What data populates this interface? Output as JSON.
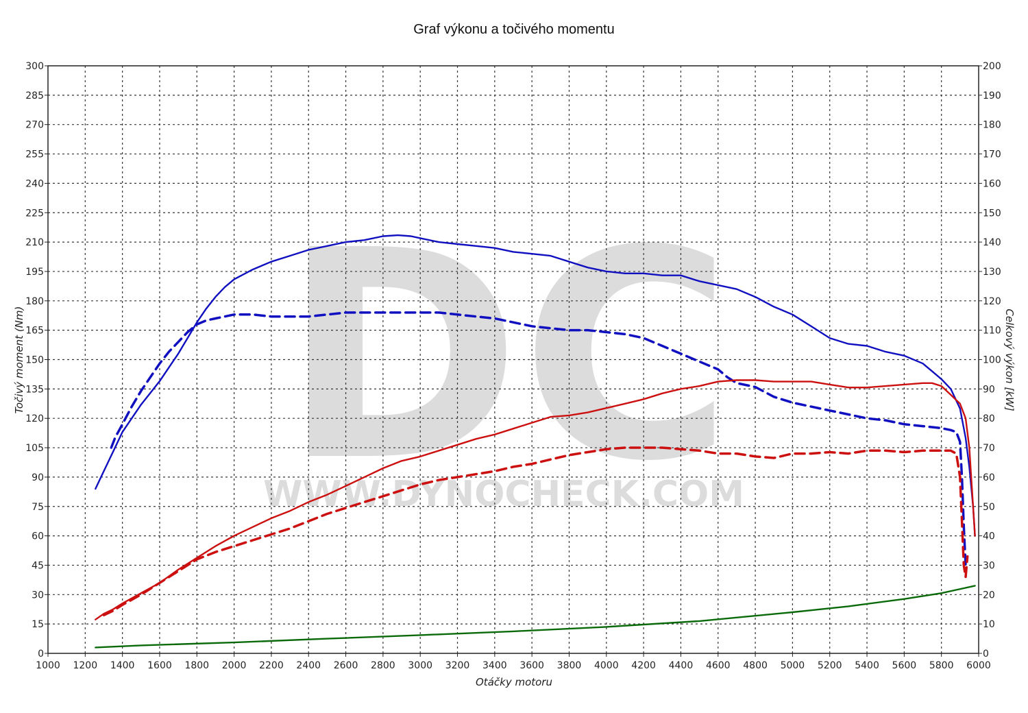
{
  "chart_data": {
    "type": "line",
    "title": "Graf výkonu a točivého momentu",
    "xlabel": "Otáčky motoru",
    "ylabel_left": "Točivý moment (Nm)",
    "ylabel_right": "Celkový výkon [kW]",
    "xlim": [
      1000,
      6000
    ],
    "xticks": [
      1000,
      1200,
      1400,
      1600,
      1800,
      2000,
      2200,
      2400,
      2600,
      2800,
      3000,
      3200,
      3400,
      3600,
      3800,
      4000,
      4200,
      4400,
      4600,
      4800,
      5000,
      5200,
      5400,
      5600,
      5800,
      6000
    ],
    "ylim_left": [
      0,
      300
    ],
    "yticks_left": [
      0,
      15,
      30,
      45,
      60,
      75,
      90,
      105,
      120,
      135,
      150,
      165,
      180,
      195,
      210,
      225,
      240,
      255,
      270,
      285,
      300
    ],
    "ylim_right": [
      0,
      200
    ],
    "yticks_right": [
      0,
      10,
      20,
      30,
      40,
      50,
      60,
      70,
      80,
      90,
      100,
      110,
      120,
      130,
      140,
      150,
      160,
      170,
      180,
      190,
      200
    ],
    "grid": true,
    "watermark": {
      "logo": "DC",
      "text": "WWW.DYNOCHECK.COM"
    },
    "series": [
      {
        "axis": "left",
        "color": "#1010c0",
        "dash": false,
        "x": [
          1255,
          1280,
          1320,
          1360,
          1400,
          1450,
          1500,
          1550,
          1600,
          1650,
          1700,
          1750,
          1800,
          1850,
          1900,
          1950,
          2000,
          2100,
          2200,
          2300,
          2400,
          2500,
          2600,
          2700,
          2800,
          2880,
          2950,
          3000,
          3100,
          3200,
          3300,
          3400,
          3500,
          3600,
          3700,
          3800,
          3900,
          4000,
          4100,
          4200,
          4300,
          4400,
          4500,
          4600,
          4700,
          4800,
          4900,
          5000,
          5100,
          5200,
          5300,
          5400,
          5500,
          5600,
          5700,
          5750,
          5800,
          5850,
          5900,
          5930,
          5950,
          5970,
          5980
        ],
        "y": [
          84,
          89,
          97,
          105,
          113,
          120,
          127,
          133,
          139,
          146,
          153,
          161,
          169,
          176,
          182,
          187,
          191,
          196,
          200,
          203,
          206,
          208,
          210,
          211,
          213,
          213.5,
          213,
          212,
          210,
          209,
          208,
          207,
          205,
          204,
          203,
          200,
          197,
          195,
          194,
          194,
          193,
          193,
          190,
          188,
          186,
          182,
          177,
          173,
          167,
          161,
          158,
          157,
          154,
          152,
          148,
          144,
          140,
          135,
          125,
          110,
          95,
          75,
          60
        ]
      },
      {
        "axis": "left",
        "color": "#1010c0",
        "dash": true,
        "x": [
          1340,
          1360,
          1400,
          1450,
          1500,
          1550,
          1600,
          1650,
          1700,
          1750,
          1800,
          1850,
          1900,
          1950,
          2000,
          2100,
          2200,
          2300,
          2400,
          2500,
          2600,
          2700,
          2800,
          2900,
          3000,
          3100,
          3200,
          3300,
          3400,
          3500,
          3600,
          3700,
          3800,
          3900,
          4000,
          4100,
          4200,
          4300,
          4400,
          4500,
          4600,
          4650,
          4700,
          4800,
          4900,
          5000,
          5100,
          5200,
          5300,
          5400,
          5500,
          5600,
          5700,
          5800,
          5850,
          5880,
          5900,
          5910,
          5920,
          5930
        ],
        "y": [
          105,
          110,
          117,
          126,
          134,
          141,
          148,
          154,
          159,
          164,
          168,
          170,
          171,
          172,
          173,
          173,
          172,
          172,
          172,
          173,
          174,
          174,
          174,
          174,
          174,
          174,
          173,
          172,
          171,
          169,
          167,
          166,
          165,
          165,
          164,
          163,
          161,
          157,
          153,
          149,
          145,
          141,
          138,
          136,
          131,
          128,
          126,
          124,
          122,
          120,
          119,
          117,
          116,
          115,
          114,
          113,
          108,
          90,
          65,
          45
        ]
      },
      {
        "axis": "right",
        "color": "#cc1010",
        "dash": false,
        "x": [
          1255,
          1300,
          1350,
          1400,
          1500,
          1600,
          1700,
          1800,
          1900,
          2000,
          2100,
          2200,
          2300,
          2400,
          2500,
          2600,
          2700,
          2800,
          2900,
          3000,
          3100,
          3200,
          3300,
          3400,
          3500,
          3600,
          3700,
          3800,
          3900,
          4000,
          4100,
          4200,
          4300,
          4400,
          4500,
          4600,
          4700,
          4800,
          4900,
          5000,
          5100,
          5200,
          5300,
          5400,
          5500,
          5600,
          5700,
          5750,
          5800,
          5850,
          5900,
          5930,
          5950,
          5970,
          5980
        ],
        "y": [
          11.5,
          13.5,
          15,
          17,
          20.5,
          24,
          28.5,
          32.5,
          36.5,
          40,
          43,
          46,
          48.5,
          51.5,
          54,
          57,
          60,
          63,
          65.5,
          67,
          69,
          71,
          73,
          74.5,
          76.5,
          78.5,
          80.5,
          81,
          82,
          83.5,
          85,
          86.5,
          88.5,
          90,
          91,
          92.5,
          93,
          93,
          92.5,
          92.5,
          92.5,
          91.5,
          90.5,
          90.5,
          91,
          91.5,
          92,
          92,
          91,
          88,
          85,
          80,
          70,
          50,
          40
        ]
      },
      {
        "axis": "right",
        "color": "#cc1010",
        "dash": true,
        "x": [
          1300,
          1350,
          1400,
          1500,
          1600,
          1700,
          1800,
          1900,
          2000,
          2100,
          2200,
          2300,
          2400,
          2500,
          2600,
          2700,
          2800,
          2900,
          3000,
          3100,
          3200,
          3300,
          3400,
          3500,
          3600,
          3700,
          3800,
          3900,
          4000,
          4100,
          4200,
          4300,
          4400,
          4500,
          4600,
          4700,
          4800,
          4900,
          5000,
          5100,
          5200,
          5300,
          5400,
          5500,
          5600,
          5700,
          5800,
          5850,
          5880,
          5900,
          5910,
          5920,
          5930,
          5940
        ],
        "y": [
          13,
          14.5,
          16.5,
          20,
          24,
          28,
          32,
          34.5,
          36.5,
          38.5,
          40.5,
          42.5,
          45,
          47.5,
          49.5,
          51.5,
          53.5,
          55.5,
          57.5,
          59,
          60,
          61,
          62,
          63.5,
          64.5,
          66,
          67.5,
          68.5,
          69.5,
          70,
          70,
          70,
          69.5,
          69,
          68,
          68,
          67,
          66.5,
          68,
          68,
          68.5,
          68,
          69,
          69,
          68.5,
          69,
          69,
          69,
          68,
          60,
          45,
          30,
          26,
          33
        ]
      },
      {
        "axis": "right",
        "color": "#0a6a0a",
        "dash": false,
        "x": [
          1255,
          1500,
          2000,
          2500,
          3000,
          3500,
          4000,
          4500,
          5000,
          5300,
          5600,
          5800,
          5980
        ],
        "y": [
          2,
          2.7,
          3.7,
          5,
          6.2,
          7.5,
          9,
          11,
          14,
          16,
          18.5,
          20.5,
          23
        ]
      }
    ]
  }
}
